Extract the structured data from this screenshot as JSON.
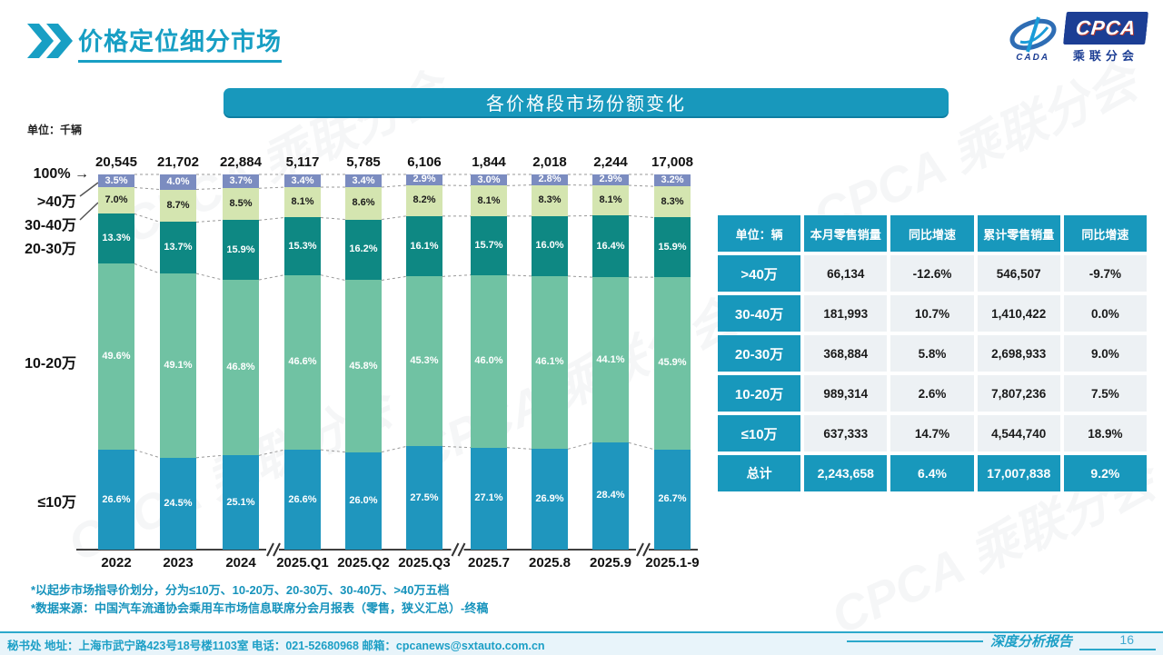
{
  "page": {
    "title": "价格定位细分市场",
    "watermark": "CPCA 乘联分会",
    "page_number": "16",
    "report_label": "深度分析报告",
    "contact": "秘书处  地址：上海市武宁路423号18号楼1103室  电话：021-52680968  邮箱：cpcanews@sxtauto.com.cn",
    "notes": [
      "*以起步市场指导价划分，分为≤10万、10-20万、20-30万、30-40万、>40万五档",
      "*数据来源：中国汽车流通协会乘用车市场信息联席分会月报表（零售，狭义汇总）-终稿"
    ]
  },
  "icons": {
    "arrow_right": "→"
  },
  "logo": {
    "cada": "CADA",
    "cpca": "CPCA",
    "sub": "乘联分会"
  },
  "banner": {
    "title": "各价格段市场份额变化"
  },
  "colors": {
    "accent_teal": "#1898BC",
    "title_teal": "#189FC4",
    "seg_le10": "#1F96BE",
    "seg_1020": "#70C2A3",
    "seg_2030": "#0E8883",
    "seg_3040": "#D4E5B0",
    "seg_gt40": "#7B8CC0"
  },
  "chart_data": {
    "type": "bar",
    "stacked": true,
    "title": "各价格段市场份额变化",
    "unit_label": "单位：千辆",
    "ylim": [
      0,
      100
    ],
    "categories": [
      "2022",
      "2023",
      "2024",
      "2025.Q1",
      "2025.Q2",
      "2025.Q3",
      "2025.7",
      "2025.8",
      "2025.9",
      "2025.1-9"
    ],
    "totals": [
      "20,545",
      "21,702",
      "22,884",
      "5,117",
      "5,785",
      "6,106",
      "1,844",
      "2,018",
      "2,244",
      "17,008"
    ],
    "group_breaks_after": [
      2,
      5,
      8
    ],
    "axis_labels": {
      "hundred": "100%",
      "gt40": ">40万",
      "b3040": "30-40万",
      "b2030": "20-30万",
      "b1020": "10-20万",
      "le10": "≤10万"
    },
    "series": [
      {
        "name": "≤10万",
        "color": "#1F96BE",
        "text_color": "#ffffff",
        "values": [
          26.6,
          24.5,
          25.1,
          26.6,
          26.0,
          27.5,
          27.1,
          26.9,
          28.4,
          26.7
        ]
      },
      {
        "name": "10-20万",
        "color": "#70C2A3",
        "text_color": "#ffffff",
        "values": [
          49.6,
          49.1,
          46.8,
          46.6,
          45.8,
          45.3,
          46.0,
          46.1,
          44.1,
          45.9
        ]
      },
      {
        "name": "20-30万",
        "color": "#0E8883",
        "text_color": "#ffffff",
        "values": [
          13.3,
          13.7,
          15.9,
          15.3,
          16.2,
          16.1,
          15.7,
          16.0,
          16.4,
          15.9
        ]
      },
      {
        "name": "30-40万",
        "color": "#D4E5B0",
        "text_color": "#1a1a1a",
        "values": [
          7.0,
          8.7,
          8.5,
          8.1,
          8.6,
          8.2,
          8.1,
          8.3,
          8.1,
          8.3
        ]
      },
      {
        "name": ">40万",
        "color": "#7B8CC0",
        "text_color": "#ffffff",
        "values": [
          3.5,
          4.0,
          3.7,
          3.4,
          3.4,
          2.9,
          3.0,
          2.8,
          2.9,
          3.2
        ]
      }
    ]
  },
  "table": {
    "header": [
      "单位：辆",
      "本月零售销量",
      "同比增速",
      "累计零售销量",
      "同比增速"
    ],
    "rows": [
      [
        ">40万",
        "66,134",
        "-12.6%",
        "546,507",
        "-9.7%"
      ],
      [
        "30-40万",
        "181,993",
        "10.7%",
        "1,410,422",
        "0.0%"
      ],
      [
        "20-30万",
        "368,884",
        "5.8%",
        "2,698,933",
        "9.0%"
      ],
      [
        "10-20万",
        "989,314",
        "2.6%",
        "7,807,236",
        "7.5%"
      ],
      [
        "≤10万",
        "637,333",
        "14.7%",
        "4,544,740",
        "18.9%"
      ]
    ],
    "total": [
      "总计",
      "2,243,658",
      "6.4%",
      "17,007,838",
      "9.2%"
    ]
  }
}
